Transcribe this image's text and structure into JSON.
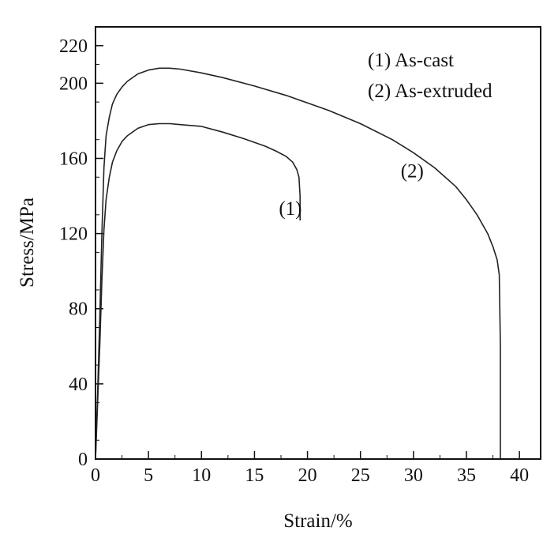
{
  "chart_data": {
    "type": "line",
    "xlabel": "Strain/%",
    "ylabel": "Stress/MPa",
    "xlim": [
      0,
      42
    ],
    "ylim": [
      0,
      230
    ],
    "xticks": [
      0,
      5,
      10,
      15,
      20,
      25,
      30,
      35,
      40
    ],
    "yticks": [
      0,
      40,
      80,
      120,
      160,
      200,
      220
    ],
    "xtick_labels": [
      "0",
      "5",
      "10",
      "15",
      "20",
      "25",
      "30",
      "35",
      "40"
    ],
    "ytick_labels": [
      "0",
      "40",
      "80",
      "120",
      "160",
      "200",
      "220"
    ],
    "grid": false,
    "legend": {
      "position": "top-right",
      "entries": [
        "(1) As-cast",
        "(2) As-extruded"
      ]
    },
    "series": [
      {
        "name": "(1) As-cast",
        "label": "(1)",
        "color": "#222222",
        "x": [
          0,
          0.2,
          0.4,
          0.6,
          0.8,
          1.0,
          1.3,
          1.6,
          2.0,
          2.5,
          3.0,
          4.0,
          5.0,
          6.0,
          7.0,
          8.0,
          10.0,
          12.0,
          14.0,
          16.0,
          17.0,
          18.0,
          18.6,
          19.0,
          19.2,
          19.3,
          19.3
        ],
        "y": [
          0,
          30,
          60,
          95,
          122,
          138,
          150,
          158,
          164,
          169,
          172,
          176,
          178,
          178.5,
          178.5,
          178,
          177,
          174,
          170.5,
          166.5,
          164,
          161,
          158,
          154,
          150,
          140,
          127
        ]
      },
      {
        "name": "(2) As-extruded",
        "label": "(2)",
        "color": "#222222",
        "x": [
          0,
          0.2,
          0.4,
          0.6,
          0.8,
          1.0,
          1.3,
          1.6,
          2.0,
          2.5,
          3.0,
          4.0,
          5.0,
          6.0,
          7.0,
          8.0,
          10.0,
          12.0,
          15.0,
          18.0,
          20.0,
          22.0,
          25.0,
          28.0,
          30.0,
          32.0,
          34.0,
          35.0,
          36.0,
          37.0,
          37.5,
          37.9,
          38.1,
          38.2,
          38.2
        ],
        "y": [
          0,
          35,
          75,
          120,
          155,
          172,
          182,
          189,
          194,
          198,
          201,
          205,
          207,
          208,
          208,
          207.5,
          205.5,
          203,
          198.5,
          193.5,
          189.5,
          185.5,
          178.5,
          170,
          163,
          155,
          145,
          138,
          130,
          120,
          113,
          106,
          98,
          60,
          0
        ]
      }
    ]
  },
  "curve_labels": [
    {
      "text": "(1)",
      "x": 17.3,
      "y": 130
    },
    {
      "text": "(2)",
      "x": 28.8,
      "y": 150
    }
  ]
}
